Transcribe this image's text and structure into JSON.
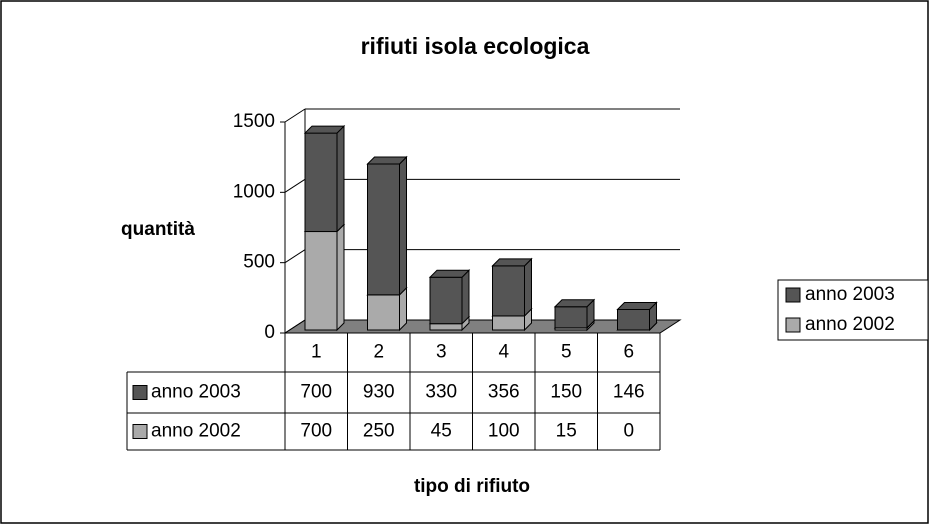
{
  "chart_data": {
    "type": "bar3d_stacked",
    "title": "rifiuti isola ecologica",
    "y_label": "quantità",
    "x_label": "tipo di rifiuto",
    "categories": [
      "1",
      "2",
      "3",
      "4",
      "5",
      "6"
    ],
    "series": [
      {
        "name": "anno 2003",
        "color": "#555555",
        "values": [
          700,
          930,
          330,
          356,
          150,
          146
        ]
      },
      {
        "name": "anno 2002",
        "color": "#aaaaaa",
        "values": [
          700,
          250,
          45,
          100,
          15,
          0
        ]
      }
    ],
    "ylim": [
      0,
      1500
    ],
    "yticks": [
      0,
      500,
      1000,
      1500
    ],
    "grid": true,
    "legend": "right"
  }
}
